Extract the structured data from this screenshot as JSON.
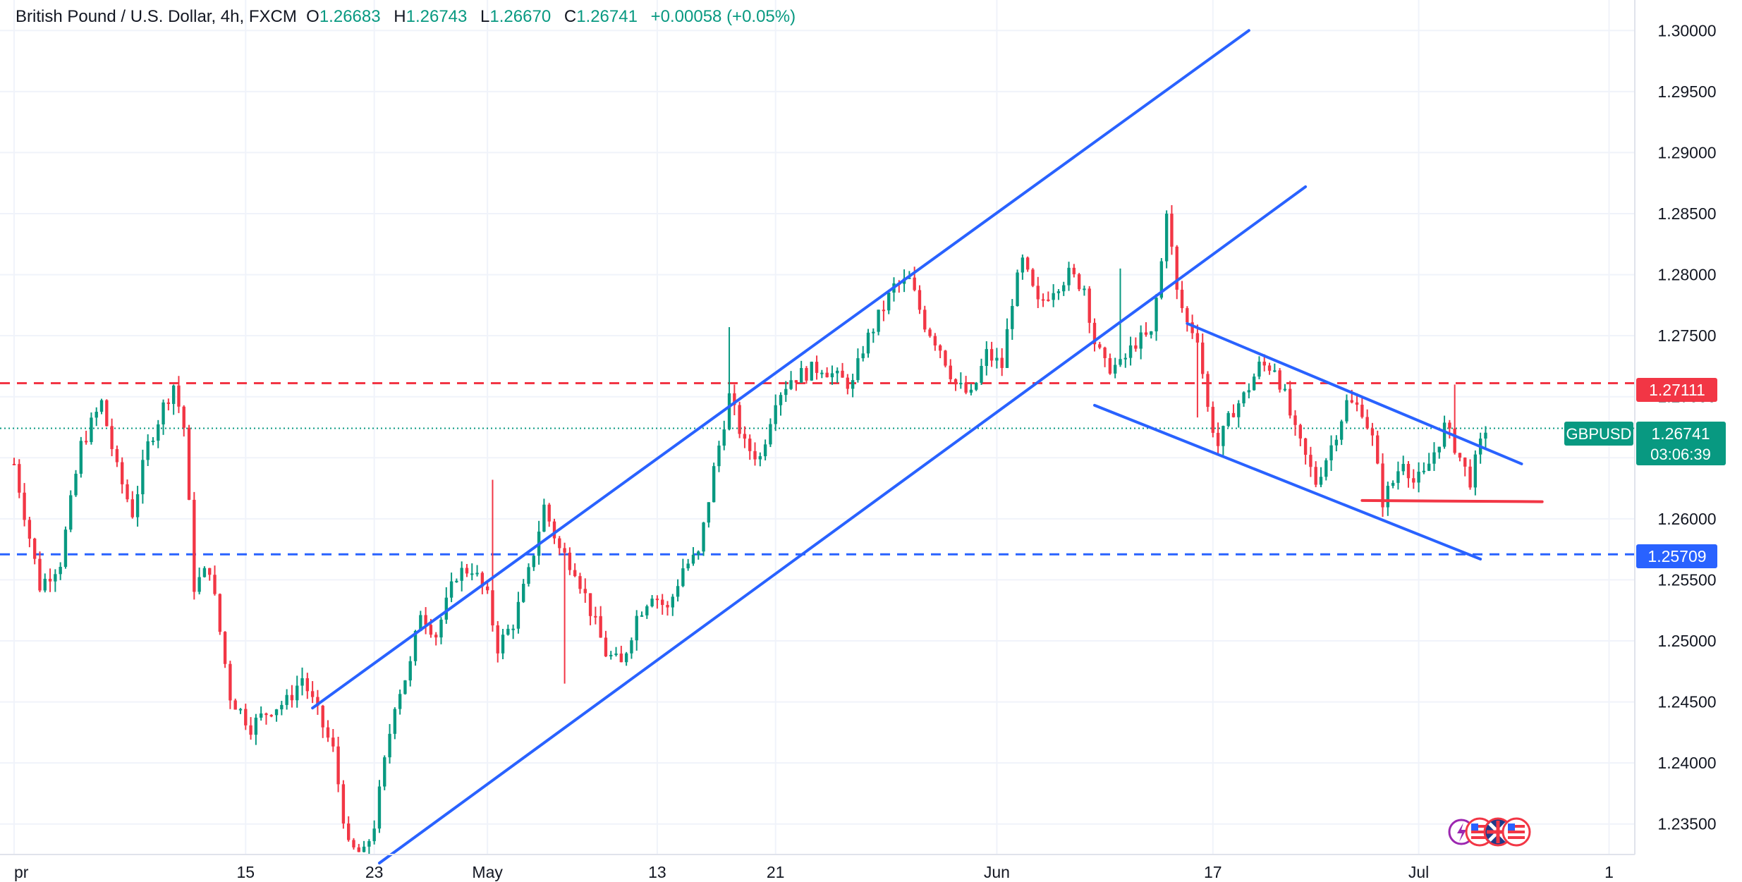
{
  "header": {
    "symbol": "British Pound / U.S. Dollar, 4h, FXCM",
    "o_label": "O",
    "o_value": "1.26683",
    "h_label": "H",
    "h_value": "1.26743",
    "l_label": "L",
    "l_value": "1.26670",
    "c_label": "C",
    "c_value": "1.26741",
    "change": "+0.00058 (+0.05%)"
  },
  "colors": {
    "up": "#089981",
    "down": "#f23645",
    "trend": "#2962ff",
    "resistance": "#f23645",
    "support": "#2962ff",
    "grid": "#f0f3fa",
    "axis_text": "#131722"
  },
  "price_tags": {
    "resistance": "1.27111",
    "current_symbol": "GBPUSD",
    "current": "1.26741",
    "countdown": "03:06:39",
    "support": "1.25709"
  },
  "chart_data": {
    "type": "candlestick",
    "title": "British Pound / U.S. Dollar, 4h, FXCM",
    "ylim": [
      1.2325,
      1.3025
    ],
    "y_ticks": [
      "1.30000",
      "1.29500",
      "1.29000",
      "1.28500",
      "1.28000",
      "1.27500",
      "1.27000",
      "1.26500",
      "1.26000",
      "1.25500",
      "1.25000",
      "1.24500",
      "1.24000",
      "1.23500"
    ],
    "x_ticks": [
      "pr",
      "15",
      "23",
      "May",
      "13",
      "21",
      "Jun",
      "17",
      "Jul",
      "1"
    ],
    "x_tick_index": [
      0,
      45,
      70,
      92,
      125,
      148,
      191,
      233,
      273,
      310
    ],
    "x_range": [
      0,
      315
    ],
    "horizontal_levels": [
      {
        "name": "resistance",
        "value": 1.27111,
        "style": "dashed"
      },
      {
        "name": "support",
        "value": 1.25709,
        "style": "dashed"
      },
      {
        "name": "current",
        "value": 1.26741,
        "style": "dotted"
      }
    ],
    "trendlines": [
      {
        "name": "channel-upper",
        "points": [
          [
            58,
            1.2445
          ],
          [
            240,
            1.3
          ]
        ]
      },
      {
        "name": "channel-lower",
        "points": [
          [
            71,
            1.2318
          ],
          [
            251,
            1.2872
          ]
        ]
      },
      {
        "name": "wedge-upper",
        "points": [
          [
            228,
            1.276
          ],
          [
            293,
            1.2645
          ]
        ]
      },
      {
        "name": "wedge-lower",
        "points": [
          [
            210,
            1.2693
          ],
          [
            285,
            1.2567
          ]
        ]
      },
      {
        "name": "base-line",
        "points": [
          [
            262,
            1.2615
          ],
          [
            297,
            1.2614
          ]
        ],
        "color": "red"
      }
    ],
    "path": [
      [
        0,
        1.2645
      ],
      [
        5,
        1.2545
      ],
      [
        9,
        1.2565
      ],
      [
        13,
        1.266
      ],
      [
        17,
        1.2695
      ],
      [
        20,
        1.264
      ],
      [
        23,
        1.2605
      ],
      [
        26,
        1.266
      ],
      [
        29,
        1.2692
      ],
      [
        31,
        1.271
      ],
      [
        33,
        1.2675
      ],
      [
        35,
        1.2545
      ],
      [
        38,
        1.256
      ],
      [
        42,
        1.2455
      ],
      [
        46,
        1.243
      ],
      [
        50,
        1.2445
      ],
      [
        53,
        1.245
      ],
      [
        56,
        1.247
      ],
      [
        59,
        1.244
      ],
      [
        62,
        1.241
      ],
      [
        65,
        1.233
      ],
      [
        68,
        1.2325
      ],
      [
        70,
        1.235
      ],
      [
        72,
        1.24
      ],
      [
        74,
        1.245
      ],
      [
        77,
        1.248
      ],
      [
        79,
        1.2525
      ],
      [
        82,
        1.2505
      ],
      [
        86,
        1.2555
      ],
      [
        89,
        1.256
      ],
      [
        92,
        1.2535
      ],
      [
        94,
        1.2495
      ],
      [
        97,
        1.2515
      ],
      [
        100,
        1.2555
      ],
      [
        103,
        1.261
      ],
      [
        106,
        1.2575
      ],
      [
        109,
        1.256
      ],
      [
        112,
        1.2525
      ],
      [
        115,
        1.249
      ],
      [
        118,
        1.248
      ],
      [
        121,
        1.252
      ],
      [
        124,
        1.254
      ],
      [
        127,
        1.2525
      ],
      [
        130,
        1.256
      ],
      [
        133,
        1.257
      ],
      [
        136,
        1.264
      ],
      [
        139,
        1.27
      ],
      [
        142,
        1.266
      ],
      [
        145,
        1.265
      ],
      [
        148,
        1.27
      ],
      [
        151,
        1.2715
      ],
      [
        154,
        1.272
      ],
      [
        157,
        1.2725
      ],
      [
        160,
        1.2715
      ],
      [
        163,
        1.271
      ],
      [
        165,
        1.274
      ],
      [
        168,
        1.2765
      ],
      [
        171,
        1.279
      ],
      [
        174,
        1.2795
      ],
      [
        177,
        1.276
      ],
      [
        180,
        1.274
      ],
      [
        183,
        1.271
      ],
      [
        186,
        1.27
      ],
      [
        189,
        1.2735
      ],
      [
        192,
        1.2725
      ],
      [
        194,
        1.278
      ],
      [
        196,
        1.281
      ],
      [
        199,
        1.2775
      ],
      [
        202,
        1.279
      ],
      [
        205,
        1.28
      ],
      [
        208,
        1.279
      ],
      [
        210,
        1.2745
      ],
      [
        212,
        1.2725
      ],
      [
        215,
        1.2725
      ],
      [
        218,
        1.2745
      ],
      [
        221,
        1.275
      ],
      [
        223,
        1.281
      ],
      [
        224,
        1.2855
      ],
      [
        226,
        1.2785
      ],
      [
        228,
        1.276
      ],
      [
        230,
        1.275
      ],
      [
        232,
        1.269
      ],
      [
        234,
        1.266
      ],
      [
        237,
        1.269
      ],
      [
        239,
        1.27
      ],
      [
        242,
        1.2725
      ],
      [
        245,
        1.2725
      ],
      [
        247,
        1.27
      ],
      [
        249,
        1.267
      ],
      [
        251,
        1.265
      ],
      [
        253,
        1.263
      ],
      [
        256,
        1.266
      ],
      [
        259,
        1.2695
      ],
      [
        262,
        1.269
      ],
      [
        264,
        1.2665
      ],
      [
        266,
        1.2615
      ],
      [
        268,
        1.263
      ],
      [
        270,
        1.265
      ],
      [
        272,
        1.263
      ],
      [
        274,
        1.2635
      ],
      [
        276,
        1.2655
      ],
      [
        278,
        1.2675
      ],
      [
        280,
        1.266
      ],
      [
        282,
        1.264
      ],
      [
        283,
        1.2632
      ],
      [
        285,
        1.266
      ],
      [
        286,
        1.2674
      ]
    ],
    "spikes": [
      [
        93,
        "h",
        1.2632
      ],
      [
        107,
        "l",
        1.2465
      ],
      [
        139,
        "h",
        1.2757
      ],
      [
        215,
        "h",
        1.2805
      ],
      [
        280,
        "h",
        1.271
      ],
      [
        230,
        "l",
        1.2683
      ]
    ]
  }
}
